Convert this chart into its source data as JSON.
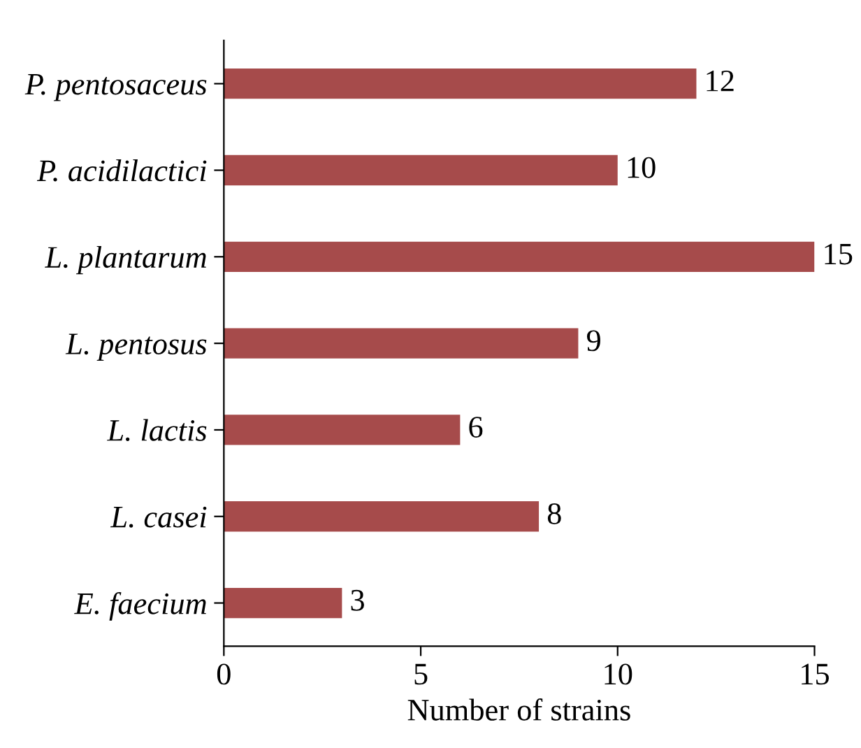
{
  "chart_data": {
    "type": "bar",
    "orientation": "horizontal",
    "xlabel": "Number of strains",
    "categories": [
      "P. pentosaceus",
      "P. acidilactici",
      "L. plantarum",
      "L. pentosus",
      "L. lactis",
      "L. casei",
      "E. faecium"
    ],
    "values": [
      12,
      10,
      15,
      9,
      6,
      8,
      3
    ],
    "color": "#a64b4b",
    "xlim": [
      0,
      15
    ],
    "xticks": [
      0,
      5,
      10,
      15
    ],
    "data_labels": true,
    "grid": false,
    "legend": false
  }
}
